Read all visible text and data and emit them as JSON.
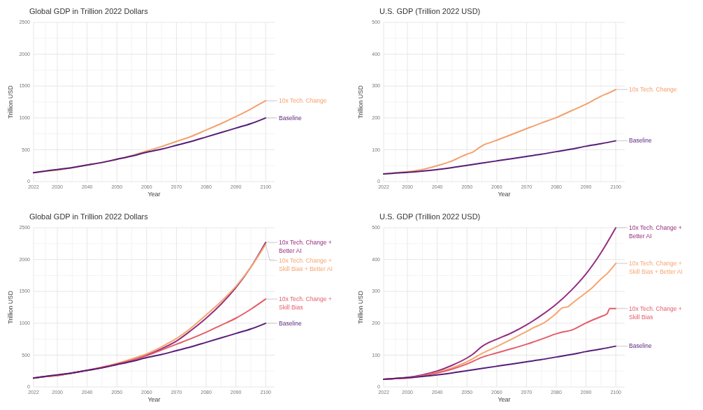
{
  "chart_data": [
    {
      "type": "line",
      "title": "Global GDP in Trillion 2022 Dollars",
      "xlabel": "Year",
      "ylabel": "Trillion USD",
      "x": [
        2022,
        2025,
        2030,
        2035,
        2040,
        2045,
        2050,
        2055,
        2060,
        2065,
        2070,
        2075,
        2080,
        2085,
        2090,
        2095,
        2100
      ],
      "xlim": [
        2022,
        2103
      ],
      "xticks": [
        2022,
        2030,
        2040,
        2050,
        2060,
        2070,
        2080,
        2090,
        2100
      ],
      "ylim": [
        0,
        2500
      ],
      "yticks": [
        0,
        500,
        1000,
        1500,
        2000,
        2500
      ],
      "grid": true,
      "series": [
        {
          "name": "10x Tech. Change",
          "color": "#f4a06c",
          "values": [
            140,
            160,
            180,
            220,
            260,
            300,
            350,
            410,
            480,
            550,
            630,
            710,
            810,
            910,
            1020,
            1140,
            1270
          ]
        },
        {
          "name": "Baseline",
          "color": "#561d78",
          "values": [
            140,
            160,
            190,
            220,
            260,
            300,
            350,
            400,
            460,
            510,
            570,
            630,
            700,
            770,
            840,
            910,
            1000
          ]
        }
      ]
    },
    {
      "type": "line",
      "title": "U.S. GDP (Trillion 2022 USD)",
      "xlabel": "Year",
      "ylabel": "Trillion USD",
      "xlim": [
        2022,
        2103
      ],
      "xticks": [
        2022,
        2030,
        2040,
        2050,
        2060,
        2070,
        2080,
        2090,
        2100
      ],
      "ylim": [
        0,
        500
      ],
      "yticks": [
        0,
        100,
        200,
        300,
        400,
        500
      ],
      "grid": true,
      "series": [
        {
          "name": "10x Tech. Change",
          "color": "#f4a06c",
          "x": [
            2022,
            2025,
            2030,
            2035,
            2040,
            2045,
            2048,
            2050,
            2052,
            2054,
            2056,
            2058,
            2060,
            2065,
            2070,
            2075,
            2080,
            2085,
            2090,
            2095,
            2098,
            2100
          ],
          "values": [
            24,
            27,
            31,
            38,
            50,
            65,
            78,
            86,
            93,
            106,
            117,
            123,
            130,
            148,
            166,
            184,
            201,
            222,
            243,
            268,
            280,
            289
          ]
        },
        {
          "name": "Baseline",
          "color": "#561d78",
          "x": [
            2022,
            2025,
            2030,
            2035,
            2040,
            2045,
            2050,
            2055,
            2060,
            2065,
            2070,
            2075,
            2080,
            2085,
            2090,
            2095,
            2100
          ],
          "values": [
            24,
            26,
            29,
            33,
            38,
            44,
            51,
            58,
            65,
            72,
            79,
            86,
            94,
            102,
            111,
            119,
            128
          ]
        }
      ]
    },
    {
      "type": "line",
      "title": "Global GDP in Trillion 2022 Dollars",
      "xlabel": "Year",
      "ylabel": "Trillion USD",
      "x": [
        2022,
        2025,
        2030,
        2035,
        2040,
        2045,
        2050,
        2055,
        2060,
        2065,
        2070,
        2075,
        2080,
        2085,
        2090,
        2095,
        2100
      ],
      "xlim": [
        2022,
        2103
      ],
      "xticks": [
        2022,
        2030,
        2040,
        2050,
        2060,
        2070,
        2080,
        2090,
        2100
      ],
      "ylim": [
        0,
        2500
      ],
      "yticks": [
        0,
        500,
        1000,
        1500,
        2000,
        2500
      ],
      "grid": true,
      "series": [
        {
          "name": "10x Tech. Change + Better AI",
          "color": "#952d7e",
          "values": [
            140,
            160,
            180,
            220,
            260,
            300,
            360,
            420,
            500,
            600,
            720,
            890,
            1080,
            1300,
            1560,
            1880,
            2270
          ]
        },
        {
          "name": "10x Tech. Change + Skill Bias + Better AI",
          "color": "#f6a56f",
          "values": [
            140,
            160,
            180,
            220,
            260,
            310,
            370,
            440,
            520,
            630,
            760,
            930,
            1130,
            1340,
            1580,
            1880,
            2240
          ]
        },
        {
          "name": "10x Tech. Change + Skill Bias",
          "color": "#e35d6a",
          "values": [
            140,
            160,
            180,
            220,
            260,
            310,
            360,
            420,
            490,
            580,
            670,
            760,
            860,
            970,
            1080,
            1220,
            1380
          ]
        },
        {
          "name": "Baseline",
          "color": "#561d78",
          "values": [
            140,
            160,
            190,
            220,
            260,
            300,
            350,
            400,
            460,
            510,
            570,
            630,
            700,
            770,
            840,
            910,
            1000
          ]
        }
      ]
    },
    {
      "type": "line",
      "title": "U.S. GDP (Trillion 2022 USD)",
      "xlabel": "Year",
      "ylabel": "Trillion USD",
      "xlim": [
        2022,
        2103
      ],
      "xticks": [
        2022,
        2030,
        2040,
        2050,
        2060,
        2070,
        2080,
        2090,
        2100
      ],
      "ylim": [
        0,
        500
      ],
      "yticks": [
        0,
        100,
        200,
        300,
        400,
        500
      ],
      "grid": true,
      "series": [
        {
          "name": "10x Tech. Change + Better AI",
          "color": "#952d7e",
          "x": [
            2022,
            2025,
            2030,
            2035,
            2040,
            2045,
            2050,
            2052,
            2055,
            2057,
            2060,
            2065,
            2070,
            2075,
            2080,
            2085,
            2090,
            2095,
            2100
          ],
          "values": [
            24,
            26,
            30,
            38,
            50,
            68,
            91,
            103,
            127,
            138,
            150,
            170,
            195,
            225,
            260,
            303,
            355,
            421,
            500
          ]
        },
        {
          "name": "10x Tech. Change + Skill Bias + Better AI",
          "color": "#f6a56f",
          "x": [
            2022,
            2025,
            2030,
            2035,
            2040,
            2045,
            2050,
            2055,
            2060,
            2065,
            2070,
            2073,
            2075,
            2080,
            2082,
            2084,
            2085,
            2090,
            2092,
            2095,
            2097,
            2100
          ],
          "values": [
            24,
            26,
            29,
            35,
            46,
            60,
            79,
            105,
            127,
            150,
            174,
            189,
            197,
            231,
            248,
            252,
            260,
            296,
            311,
            339,
            355,
            388
          ]
        },
        {
          "name": "10x Tech. Change + Skill Bias",
          "color": "#e35d6a",
          "x": [
            2022,
            2025,
            2030,
            2035,
            2040,
            2045,
            2050,
            2055,
            2060,
            2065,
            2070,
            2075,
            2080,
            2082,
            2085,
            2090,
            2095,
            2097,
            2098,
            2100
          ],
          "values": [
            24,
            26,
            28,
            35,
            44,
            56,
            72,
            93,
            107,
            120,
            134,
            150,
            167,
            172,
            178,
            201,
            221,
            229,
            246,
            246
          ]
        },
        {
          "name": "Baseline",
          "color": "#561d78",
          "x": [
            2022,
            2025,
            2030,
            2035,
            2040,
            2045,
            2050,
            2055,
            2060,
            2065,
            2070,
            2075,
            2080,
            2085,
            2090,
            2095,
            2100
          ],
          "values": [
            24,
            26,
            29,
            33,
            38,
            44,
            51,
            58,
            65,
            72,
            79,
            86,
            94,
            102,
            111,
            119,
            128
          ]
        }
      ]
    }
  ]
}
